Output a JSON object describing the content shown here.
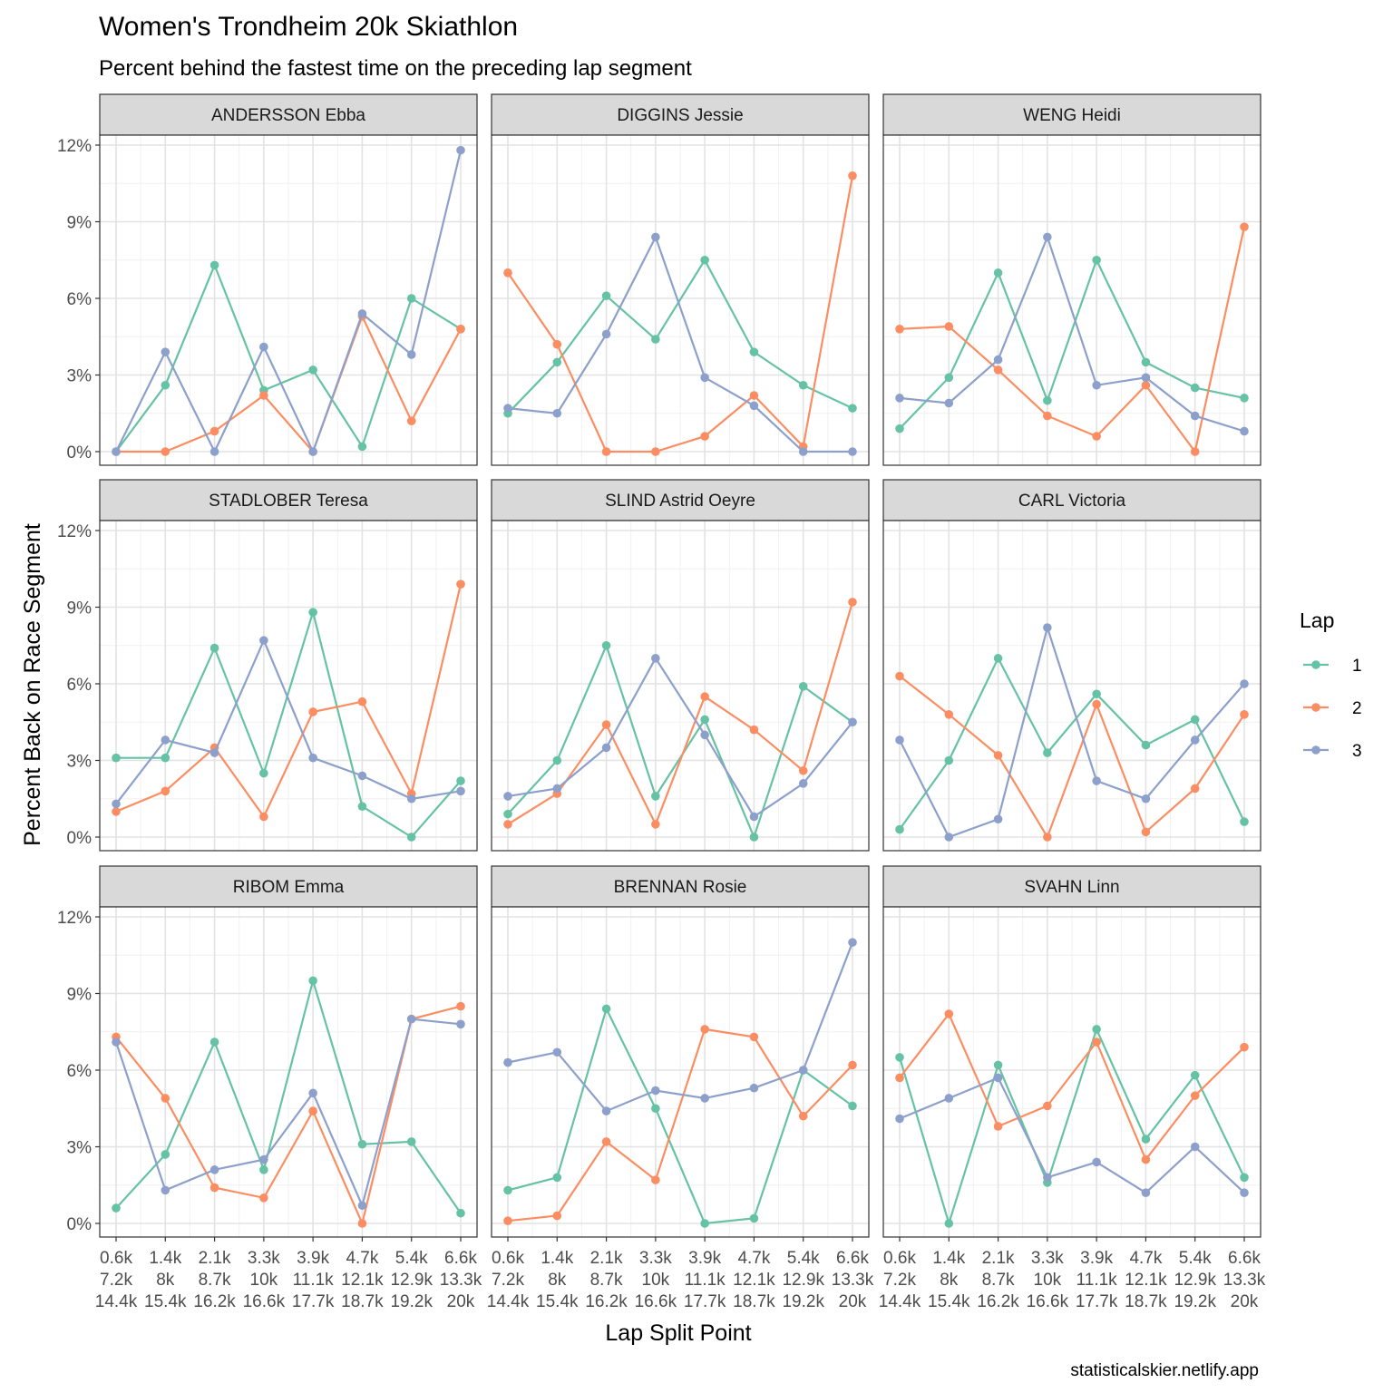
{
  "chart_data": {
    "type": "line",
    "title": "Women's Trondheim 20k  Skiathlon",
    "subtitle": "Percent behind the fastest time on the preceding lap segment",
    "xlabel": "Lap Split Point",
    "ylabel": "Percent Back on Race Segment",
    "caption": "statisticalskier.netlify.app",
    "legend_title": "Lap",
    "legend_position": "right",
    "grid": true,
    "ylim": [
      0,
      12
    ],
    "y_ticks": [
      "0%",
      "3%",
      "6%",
      "9%",
      "12%"
    ],
    "x_ticks": [
      [
        "0.6k",
        "7.2k",
        "14.4k"
      ],
      [
        "1.4k",
        "8k",
        "15.4k"
      ],
      [
        "2.1k",
        "8.7k",
        "16.2k"
      ],
      [
        "3.3k",
        "10k",
        "16.6k"
      ],
      [
        "3.9k",
        "11.1k",
        "17.7k"
      ],
      [
        "4.7k",
        "12.1k",
        "18.7k"
      ],
      [
        "5.4k",
        "12.9k",
        "19.2k"
      ],
      [
        "6.6k",
        "13.3k",
        "20k"
      ]
    ],
    "series_colors": {
      "1": "#66C2A5",
      "2": "#FC8D62",
      "3": "#8DA0CB"
    },
    "legend": [
      "1",
      "2",
      "3"
    ],
    "panels": [
      {
        "name": "ANDERSSON Ebba",
        "series": [
          {
            "name": "1",
            "values": [
              0,
              2.6,
              7.3,
              2.4,
              3.2,
              0.2,
              6.0,
              4.8
            ]
          },
          {
            "name": "2",
            "values": [
              0,
              0,
              0.8,
              2.2,
              0,
              5.3,
              1.2,
              4.8
            ]
          },
          {
            "name": "3",
            "values": [
              0,
              3.9,
              0,
              4.1,
              0,
              5.4,
              3.8,
              11.8
            ]
          }
        ]
      },
      {
        "name": "DIGGINS Jessie",
        "series": [
          {
            "name": "1",
            "values": [
              1.5,
              3.5,
              6.1,
              4.4,
              7.5,
              3.9,
              2.6,
              1.7
            ]
          },
          {
            "name": "2",
            "values": [
              7.0,
              4.2,
              0,
              0,
              0.6,
              2.2,
              0.2,
              10.8
            ]
          },
          {
            "name": "3",
            "values": [
              1.7,
              1.5,
              4.6,
              8.4,
              2.9,
              1.8,
              0,
              0
            ]
          }
        ]
      },
      {
        "name": "WENG Heidi",
        "series": [
          {
            "name": "1",
            "values": [
              0.9,
              2.9,
              7.0,
              2.0,
              7.5,
              3.5,
              2.5,
              2.1
            ]
          },
          {
            "name": "2",
            "values": [
              4.8,
              4.9,
              3.2,
              1.4,
              0.6,
              2.6,
              0,
              8.8
            ]
          },
          {
            "name": "3",
            "values": [
              2.1,
              1.9,
              3.6,
              8.4,
              2.6,
              2.9,
              1.4,
              0.8
            ]
          }
        ]
      },
      {
        "name": "STADLOBER Teresa",
        "series": [
          {
            "name": "1",
            "values": [
              3.1,
              3.1,
              7.4,
              2.5,
              8.8,
              1.2,
              0,
              2.2
            ]
          },
          {
            "name": "2",
            "values": [
              1.0,
              1.8,
              3.5,
              0.8,
              4.9,
              5.3,
              1.7,
              9.9
            ]
          },
          {
            "name": "3",
            "values": [
              1.3,
              3.8,
              3.3,
              7.7,
              3.1,
              2.4,
              1.5,
              1.8
            ]
          }
        ]
      },
      {
        "name": "SLIND Astrid Oeyre",
        "series": [
          {
            "name": "1",
            "values": [
              0.9,
              3.0,
              7.5,
              1.6,
              4.6,
              0,
              5.9,
              4.5
            ]
          },
          {
            "name": "2",
            "values": [
              0.5,
              1.7,
              4.4,
              0.5,
              5.5,
              4.2,
              2.6,
              9.2
            ]
          },
          {
            "name": "3",
            "values": [
              1.6,
              1.9,
              3.5,
              7.0,
              4.0,
              0.8,
              2.1,
              4.5
            ]
          }
        ]
      },
      {
        "name": "CARL Victoria",
        "series": [
          {
            "name": "1",
            "values": [
              0.3,
              3.0,
              7.0,
              3.3,
              5.6,
              3.6,
              4.6,
              0.6
            ]
          },
          {
            "name": "2",
            "values": [
              6.3,
              4.8,
              3.2,
              0,
              5.2,
              0.2,
              1.9,
              4.8
            ]
          },
          {
            "name": "3",
            "values": [
              3.8,
              0,
              0.7,
              8.2,
              2.2,
              1.5,
              3.8,
              6.0
            ]
          }
        ]
      },
      {
        "name": "RIBOM Emma",
        "series": [
          {
            "name": "1",
            "values": [
              0.6,
              2.7,
              7.1,
              2.1,
              9.5,
              3.1,
              3.2,
              0.4
            ]
          },
          {
            "name": "2",
            "values": [
              7.3,
              4.9,
              1.4,
              1.0,
              4.4,
              0,
              8.0,
              8.5
            ]
          },
          {
            "name": "3",
            "values": [
              7.1,
              1.3,
              2.1,
              2.5,
              5.1,
              0.7,
              8.0,
              7.8
            ]
          }
        ]
      },
      {
        "name": "BRENNAN Rosie",
        "series": [
          {
            "name": "1",
            "values": [
              1.3,
              1.8,
              8.4,
              4.5,
              0,
              0.2,
              6.0,
              4.6
            ]
          },
          {
            "name": "2",
            "values": [
              0.1,
              0.3,
              3.2,
              1.7,
              7.6,
              7.3,
              4.2,
              6.2
            ]
          },
          {
            "name": "3",
            "values": [
              6.3,
              6.7,
              4.4,
              5.2,
              4.9,
              5.3,
              6.0,
              11.0
            ]
          }
        ]
      },
      {
        "name": "SVAHN Linn",
        "series": [
          {
            "name": "1",
            "values": [
              6.5,
              0,
              6.2,
              1.6,
              7.6,
              3.3,
              5.8,
              1.8
            ]
          },
          {
            "name": "2",
            "values": [
              5.7,
              8.2,
              3.8,
              4.6,
              7.1,
              2.5,
              5.0,
              6.9
            ]
          },
          {
            "name": "3",
            "values": [
              4.1,
              4.9,
              5.7,
              1.8,
              2.4,
              1.2,
              3.0,
              1.2
            ]
          }
        ]
      }
    ]
  }
}
